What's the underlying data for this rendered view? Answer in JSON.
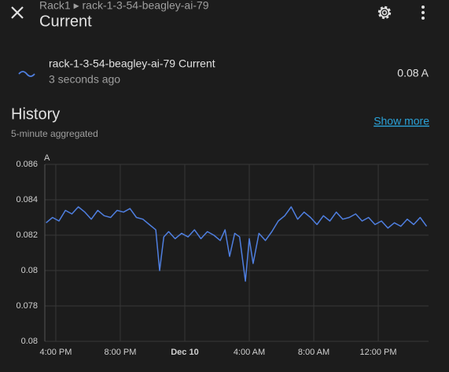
{
  "header": {
    "breadcrumb": "Rack1 ▸ rack-1-3-54-beagley-ai-79",
    "title": "Current"
  },
  "entity": {
    "name": "rack-1-3-54-beagley-ai-79 Current",
    "last_changed": "3 seconds ago",
    "state": "0.08 A"
  },
  "history": {
    "title": "History",
    "subtitle": "5-minute aggregated",
    "show_more": "Show more"
  },
  "chart_data": {
    "type": "line",
    "ylabel": "A",
    "x": [
      15.4,
      15.8,
      16.2,
      16.6,
      17.0,
      17.4,
      17.8,
      18.2,
      18.6,
      19.0,
      19.4,
      19.8,
      20.2,
      20.6,
      21.0,
      21.4,
      21.8,
      22.2,
      22.44,
      22.7,
      23.0,
      23.4,
      23.8,
      24.2,
      24.6,
      25.0,
      25.4,
      25.8,
      26.2,
      26.5,
      26.78,
      27.1,
      27.4,
      27.76,
      28.0,
      28.24,
      28.6,
      29.0,
      29.4,
      29.8,
      30.2,
      30.6,
      31.0,
      31.4,
      31.8,
      32.2,
      32.6,
      33.0,
      33.4,
      33.8,
      34.2,
      34.6,
      35.0,
      35.4,
      35.8,
      36.2,
      36.6,
      37.0,
      37.4,
      37.8,
      38.2,
      38.6,
      39.0
    ],
    "series": [
      {
        "name": "rack-1-3-54-beagley-ai-79 Current",
        "color": "#4f7fe0",
        "values": [
          0.0827,
          0.083,
          0.0828,
          0.0834,
          0.0832,
          0.0836,
          0.0833,
          0.0829,
          0.0834,
          0.0831,
          0.083,
          0.0834,
          0.0833,
          0.0835,
          0.083,
          0.0829,
          0.0826,
          0.0823,
          0.08,
          0.0819,
          0.0822,
          0.0818,
          0.0821,
          0.0819,
          0.0823,
          0.0818,
          0.0822,
          0.082,
          0.0817,
          0.0823,
          0.0808,
          0.0821,
          0.0819,
          0.0794,
          0.0818,
          0.0804,
          0.0821,
          0.0817,
          0.0822,
          0.0828,
          0.0831,
          0.0836,
          0.0829,
          0.0833,
          0.083,
          0.0826,
          0.0831,
          0.0828,
          0.0833,
          0.0829,
          0.083,
          0.0832,
          0.0828,
          0.083,
          0.0826,
          0.0828,
          0.0824,
          0.0827,
          0.0825,
          0.0829,
          0.0826,
          0.083,
          0.0825
        ]
      }
    ],
    "xlim": [
      15.32,
      39.12
    ],
    "xticks": [
      {
        "value": 16,
        "label": "4:00 PM"
      },
      {
        "value": 20,
        "label": "8:00 PM"
      },
      {
        "value": 24,
        "label": "Dec 10"
      },
      {
        "value": 28,
        "label": "4:00 AM"
      },
      {
        "value": 32,
        "label": "8:00 AM"
      },
      {
        "value": 36,
        "label": "12:00 PM"
      }
    ],
    "ylim": [
      0.076,
      0.086
    ],
    "yticks": [
      {
        "value": 0.076,
        "label": "0.08"
      },
      0.078,
      0.08,
      0.082,
      0.084,
      0.086
    ],
    "grid": true
  }
}
